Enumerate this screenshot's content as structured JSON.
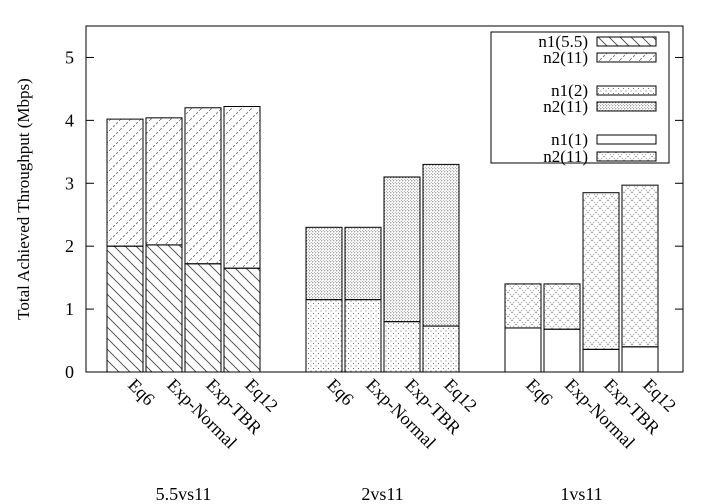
{
  "chart_data": {
    "type": "bar",
    "stacked": true,
    "title": "",
    "xlabel": "",
    "ylabel": "Total Achieved Throughput (Mbps)",
    "ylim": [
      0,
      5.5
    ],
    "yticks": [
      0,
      1,
      2,
      3,
      4,
      5
    ],
    "grid": false,
    "legend_position": "top-right",
    "groups": [
      {
        "label": "5.5vs11",
        "legend_low": "n1(5.5)",
        "legend_high": "n2(11)",
        "low_pattern": "diag-wide",
        "high_pattern": "diag-dash",
        "bars": [
          {
            "label": "Eq6",
            "low": 2.0,
            "high": 2.02
          },
          {
            "label": "Exp-Normal",
            "low": 2.02,
            "high": 2.02
          },
          {
            "label": "Exp-TBR",
            "low": 1.72,
            "high": 2.48
          },
          {
            "label": "Eq12",
            "low": 1.65,
            "high": 2.57
          }
        ]
      },
      {
        "label": "2vs11",
        "legend_low": "n1(2)",
        "legend_high": "n2(11)",
        "low_pattern": "dots-sparse",
        "high_pattern": "dots-dense",
        "bars": [
          {
            "label": "Eq6",
            "low": 1.15,
            "high": 1.15
          },
          {
            "label": "Exp-Normal",
            "low": 1.15,
            "high": 1.15
          },
          {
            "label": "Exp-TBR",
            "low": 0.8,
            "high": 2.3
          },
          {
            "label": "Eq12",
            "low": 0.73,
            "high": 2.57
          }
        ]
      },
      {
        "label": "1vs11",
        "legend_low": "n1(1)",
        "legend_high": "n2(11)",
        "low_pattern": "empty",
        "high_pattern": "cross",
        "bars": [
          {
            "label": "Eq6",
            "low": 0.7,
            "high": 0.7
          },
          {
            "label": "Exp-Normal",
            "low": 0.68,
            "high": 0.72
          },
          {
            "label": "Exp-TBR",
            "low": 0.36,
            "high": 2.49
          },
          {
            "label": "Eq12",
            "low": 0.4,
            "high": 2.57
          }
        ]
      }
    ]
  }
}
